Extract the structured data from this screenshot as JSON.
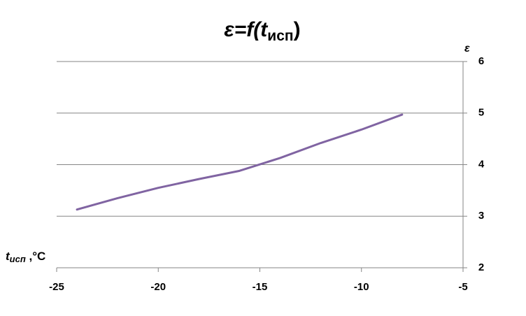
{
  "chart_data": {
    "type": "line",
    "title": [
      "ε=f(t",
      "исп",
      ")"
    ],
    "x_label": [
      "t",
      "исп",
      " ,°C"
    ],
    "y_label": "ε",
    "x": [
      -24,
      -22,
      -20,
      -18,
      -16,
      -14,
      -12,
      -10,
      -8
    ],
    "series": [
      {
        "name": "ε",
        "color": "#8064a2",
        "values": [
          3.13,
          3.35,
          3.55,
          3.72,
          3.88,
          4.13,
          4.42,
          4.68,
          4.97
        ]
      }
    ],
    "xlim": [
      -25,
      -5
    ],
    "xticks": [
      -25,
      -20,
      -15,
      -10,
      -5
    ],
    "ylim": [
      2,
      6
    ],
    "yticks": [
      2,
      3,
      4,
      5,
      6
    ],
    "y_axis_side": "right",
    "grid": true
  }
}
